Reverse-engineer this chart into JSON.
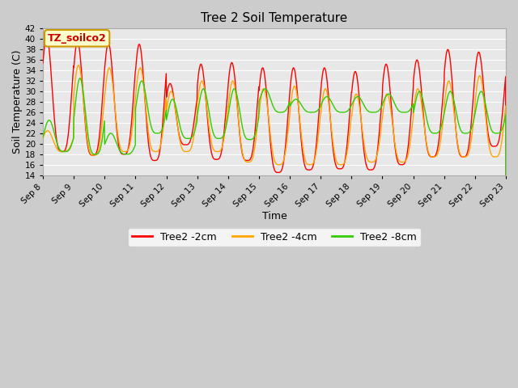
{
  "title": "Tree 2 Soil Temperature",
  "xlabel": "Time",
  "ylabel": "Soil Temperature (C)",
  "ylim": [
    14,
    42
  ],
  "xtick_labels": [
    "Sep 8",
    "Sep 9",
    "Sep 10",
    "Sep 11",
    "Sep 12",
    "Sep 13",
    "Sep 14",
    "Sep 15",
    "Sep 16",
    "Sep 17",
    "Sep 18",
    "Sep 19",
    "Sep 20",
    "Sep 21",
    "Sep 22",
    "Sep 23"
  ],
  "ytick_values": [
    14,
    16,
    18,
    20,
    22,
    24,
    26,
    28,
    30,
    32,
    34,
    36,
    38,
    40,
    42
  ],
  "color_2cm": "#FF0000",
  "color_4cm": "#FFA500",
  "color_8cm": "#33CC00",
  "legend_label_2cm": "Tree2 -2cm",
  "legend_label_4cm": "Tree2 -4cm",
  "legend_label_8cm": "Tree2 -8cm",
  "watermark_text": "TZ_soilco2",
  "watermark_bg": "#FFFFCC",
  "watermark_border": "#CC9900",
  "fig_bg": "#CCCCCC",
  "plot_bg": "#E8E8E8",
  "grid_color": "#FFFFFF",
  "title_fontsize": 11,
  "axis_label_fontsize": 9,
  "tick_label_fontsize": 7.5,
  "legend_fontsize": 9,
  "line_width": 1.0,
  "max_2cm": [
    40.5,
    39.5,
    39.2,
    39.0,
    31.5,
    35.2,
    35.5,
    34.5,
    34.5,
    34.5,
    33.8,
    35.2,
    36.0,
    38.0,
    37.5
  ],
  "min_2cm": [
    18.5,
    17.8,
    18.0,
    16.8,
    19.8,
    17.0,
    16.8,
    14.5,
    15.0,
    15.2,
    15.0,
    16.0,
    17.5,
    17.5,
    19.5
  ],
  "max_4cm": [
    22.5,
    35.0,
    34.5,
    34.5,
    30.0,
    32.0,
    32.0,
    30.5,
    31.0,
    30.5,
    29.5,
    29.5,
    30.5,
    32.0,
    33.0
  ],
  "min_4cm": [
    18.5,
    17.8,
    18.5,
    18.5,
    18.5,
    18.5,
    16.5,
    16.0,
    16.0,
    16.0,
    16.5,
    16.5,
    17.5,
    17.5,
    17.5
  ],
  "max_8cm": [
    24.5,
    32.5,
    22.0,
    32.0,
    28.5,
    30.5,
    30.5,
    30.5,
    28.5,
    29.0,
    29.0,
    29.5,
    30.0,
    30.0,
    30.0
  ],
  "min_8cm": [
    18.5,
    18.0,
    18.0,
    22.0,
    21.0,
    21.0,
    20.8,
    26.0,
    26.0,
    26.0,
    26.0,
    26.0,
    22.0,
    22.0,
    22.0
  ],
  "phase_2cm": 0.62,
  "phase_4cm": 0.65,
  "phase_8cm": 0.7
}
